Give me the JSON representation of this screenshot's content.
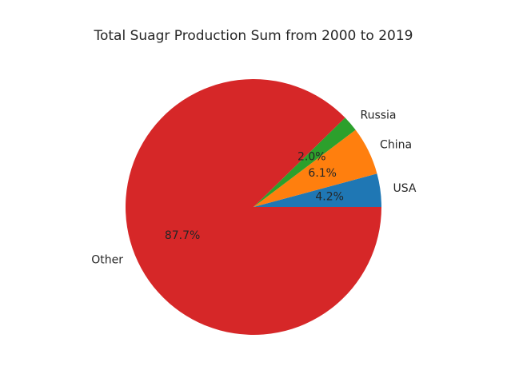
{
  "chart_data": {
    "type": "pie",
    "title": "Total Suagr Production Sum from 2000 to 2019",
    "categories": [
      "USA",
      "China",
      "Russia",
      "Other"
    ],
    "values": [
      4.2,
      6.1,
      2.0,
      87.7
    ],
    "percent_labels": [
      "4.2%",
      "6.1%",
      "2.0%",
      "87.7%"
    ],
    "colors": [
      "#1f77b4",
      "#ff7f0e",
      "#2ca02c",
      "#d62728"
    ],
    "start_angle_deg": 0,
    "direction": "counterclockwise",
    "legend": "none"
  }
}
